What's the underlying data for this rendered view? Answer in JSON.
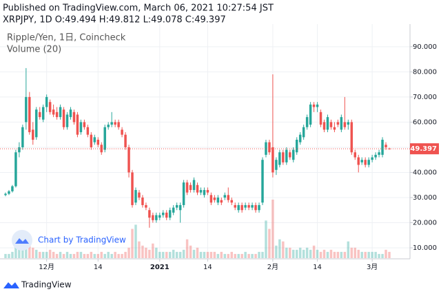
{
  "header": {
    "published": "Published on TradingView.com, March 06, 2021 10:27:54 JST",
    "symbol_line": "XRPJPY, 1D O:49.494 H:49.812 L:49.078 C:49.397"
  },
  "chart_data": {
    "type": "candlestick",
    "symbol_title": "Ripple/Yen, 1日, Coincheck",
    "volume_title": "Volume (20)",
    "watermark": "Chart by TradingView",
    "up_color": "#26a69a",
    "down_color": "#ef5350",
    "ylim": [
      5.9,
      99
    ],
    "yticks": [
      {
        "value": 10,
        "label": "10.000"
      },
      {
        "value": 20,
        "label": "20.000"
      },
      {
        "value": 30,
        "label": "30.000"
      },
      {
        "value": 40,
        "label": "40.000"
      },
      {
        "value": 50,
        "label": "50.000"
      },
      {
        "value": 60,
        "label": "60.000"
      },
      {
        "value": 70,
        "label": "70.000"
      },
      {
        "value": 80,
        "label": "80.000"
      },
      {
        "value": 90,
        "label": "90.000"
      }
    ],
    "xticks": [
      {
        "value": 12,
        "label": "12月"
      },
      {
        "value": 27,
        "label": "14"
      },
      {
        "value": 45,
        "label": "2021"
      },
      {
        "value": 59,
        "label": "14"
      },
      {
        "value": 78,
        "label": "2月"
      },
      {
        "value": 91,
        "label": "14"
      },
      {
        "value": 107,
        "label": "3月"
      }
    ],
    "last_price": 49.397,
    "grid": true,
    "candles": [
      [
        31,
        32,
        30.5,
        31.5
      ],
      [
        31.5,
        33,
        31,
        32.5
      ],
      [
        32.5,
        35,
        32,
        34.5
      ],
      [
        34.5,
        49,
        34,
        48
      ],
      [
        48,
        52,
        46,
        50
      ],
      [
        50,
        59,
        49,
        58
      ],
      [
        60,
        81.5,
        57,
        70
      ],
      [
        70,
        72,
        55,
        56
      ],
      [
        57,
        60,
        51,
        53
      ],
      [
        54,
        66,
        53,
        65
      ],
      [
        64,
        66,
        61,
        62
      ],
      [
        61,
        67,
        60,
        66
      ],
      [
        66,
        71,
        64,
        70
      ],
      [
        68,
        69,
        63,
        64
      ],
      [
        65,
        67,
        62,
        63
      ],
      [
        64,
        66,
        61,
        62
      ],
      [
        62,
        67,
        61,
        66
      ],
      [
        65,
        66,
        57,
        58
      ],
      [
        58,
        64,
        57,
        63
      ],
      [
        62,
        66,
        61,
        65
      ],
      [
        64,
        65,
        59,
        60
      ],
      [
        63,
        64,
        54,
        55
      ],
      [
        56,
        61,
        55,
        60
      ],
      [
        60,
        61,
        57,
        58
      ],
      [
        58,
        59,
        54,
        55
      ],
      [
        55,
        56,
        49,
        50
      ],
      [
        52,
        55,
        51,
        54
      ],
      [
        53,
        54,
        50,
        51
      ],
      [
        51,
        52,
        47,
        48
      ],
      [
        49,
        59,
        48,
        58
      ],
      [
        58,
        60,
        57,
        59
      ],
      [
        59,
        64,
        58,
        60
      ],
      [
        60,
        61,
        58,
        59
      ],
      [
        60,
        61,
        57,
        58
      ],
      [
        57,
        58,
        54,
        55
      ],
      [
        55,
        56,
        49,
        50
      ],
      [
        50,
        51,
        38,
        40
      ],
      [
        40,
        41,
        26,
        27
      ],
      [
        28,
        34,
        27,
        33
      ],
      [
        32,
        33,
        29,
        30
      ],
      [
        30,
        31,
        26,
        27
      ],
      [
        27,
        28,
        25,
        26
      ],
      [
        25,
        26,
        18,
        22
      ],
      [
        23,
        24,
        20,
        21
      ],
      [
        21,
        24,
        20,
        23
      ],
      [
        22,
        24,
        21,
        23
      ],
      [
        23,
        25,
        22,
        24
      ],
      [
        24,
        25,
        21,
        22
      ],
      [
        22,
        26,
        21,
        25
      ],
      [
        24,
        27,
        23,
        26
      ],
      [
        26,
        28,
        25,
        27
      ],
      [
        25,
        28,
        20,
        27
      ],
      [
        27,
        37,
        26,
        36
      ],
      [
        36,
        37,
        31,
        32
      ],
      [
        35,
        36,
        32,
        33
      ],
      [
        33,
        38,
        32,
        37
      ],
      [
        35,
        36,
        31,
        32
      ],
      [
        32,
        34,
        31,
        33
      ],
      [
        31,
        34,
        30,
        33
      ],
      [
        33,
        34,
        31,
        32
      ],
      [
        31,
        32,
        27,
        28
      ],
      [
        30,
        31,
        28,
        29
      ],
      [
        28,
        31,
        27,
        30
      ],
      [
        29,
        30,
        27,
        28
      ],
      [
        30,
        32,
        29,
        31
      ],
      [
        31,
        34,
        28,
        29
      ],
      [
        29,
        30,
        27,
        28
      ],
      [
        27,
        28,
        25,
        26
      ],
      [
        25,
        28,
        24,
        27
      ],
      [
        27,
        28,
        24,
        25
      ],
      [
        26,
        28,
        25,
        27
      ],
      [
        27,
        28,
        25,
        26
      ],
      [
        26,
        28,
        25,
        27
      ],
      [
        27,
        28,
        24,
        25
      ],
      [
        25,
        28,
        24,
        27
      ],
      [
        28,
        46,
        27,
        45
      ],
      [
        47,
        53,
        46,
        52
      ],
      [
        52,
        53,
        47,
        48
      ],
      [
        50,
        79,
        38,
        40
      ],
      [
        41,
        46,
        39,
        45
      ],
      [
        43,
        49,
        42,
        48
      ],
      [
        48,
        49,
        43,
        44
      ],
      [
        44,
        50,
        43,
        49
      ],
      [
        48,
        49,
        45,
        46
      ],
      [
        45,
        50,
        44,
        49
      ],
      [
        48,
        54,
        47,
        53
      ],
      [
        52,
        56,
        51,
        55
      ],
      [
        54,
        59,
        53,
        58
      ],
      [
        58,
        63,
        57,
        62
      ],
      [
        59,
        68,
        58,
        67
      ],
      [
        67,
        68,
        64,
        66
      ],
      [
        66,
        68,
        64,
        67
      ],
      [
        64,
        65,
        58,
        59
      ],
      [
        60,
        61,
        56,
        57
      ],
      [
        57,
        63,
        56,
        62
      ],
      [
        60,
        61,
        57,
        58
      ],
      [
        58,
        60,
        56,
        57
      ],
      [
        60,
        61,
        58,
        59
      ],
      [
        57,
        63,
        56,
        62
      ],
      [
        60,
        70,
        57,
        58
      ],
      [
        59,
        61,
        57,
        60
      ],
      [
        60,
        61,
        47,
        48
      ],
      [
        48,
        49,
        45,
        46
      ],
      [
        46,
        47,
        40,
        43
      ],
      [
        44,
        46,
        43,
        45
      ],
      [
        45,
        46,
        42,
        43
      ],
      [
        43,
        46,
        42,
        45
      ],
      [
        45,
        47,
        44,
        46
      ],
      [
        46,
        48,
        45,
        47
      ],
      [
        47,
        49,
        46,
        48
      ],
      [
        47,
        54,
        46,
        53
      ],
      [
        51,
        52,
        49,
        50
      ],
      [
        49.494,
        49.812,
        49.078,
        49.397
      ]
    ],
    "volume": [
      2,
      2,
      3,
      6,
      4,
      5,
      9,
      7,
      5,
      4,
      3,
      3,
      3,
      4,
      3,
      2,
      3,
      2,
      3,
      2,
      2,
      3,
      3,
      2,
      2,
      3,
      2,
      2,
      3,
      2,
      3,
      2,
      3,
      2,
      2,
      3,
      5,
      14,
      16,
      8,
      6,
      5,
      4,
      7,
      5,
      3,
      3,
      3,
      3,
      4,
      3,
      3,
      4,
      9,
      6,
      4,
      5,
      3,
      3,
      3,
      3,
      3,
      2,
      3,
      2,
      2,
      3,
      2,
      2,
      2,
      3,
      2,
      2,
      2,
      3,
      3,
      18,
      14,
      28,
      6,
      9,
      8,
      5,
      5,
      4,
      4,
      5,
      4,
      5,
      4,
      6,
      4,
      3,
      4,
      3,
      4,
      3,
      3,
      3,
      3,
      8,
      5,
      5,
      4,
      3,
      3,
      3,
      3,
      3,
      2,
      2,
      4,
      3
    ]
  },
  "footer": {
    "brand": "TradingView"
  }
}
